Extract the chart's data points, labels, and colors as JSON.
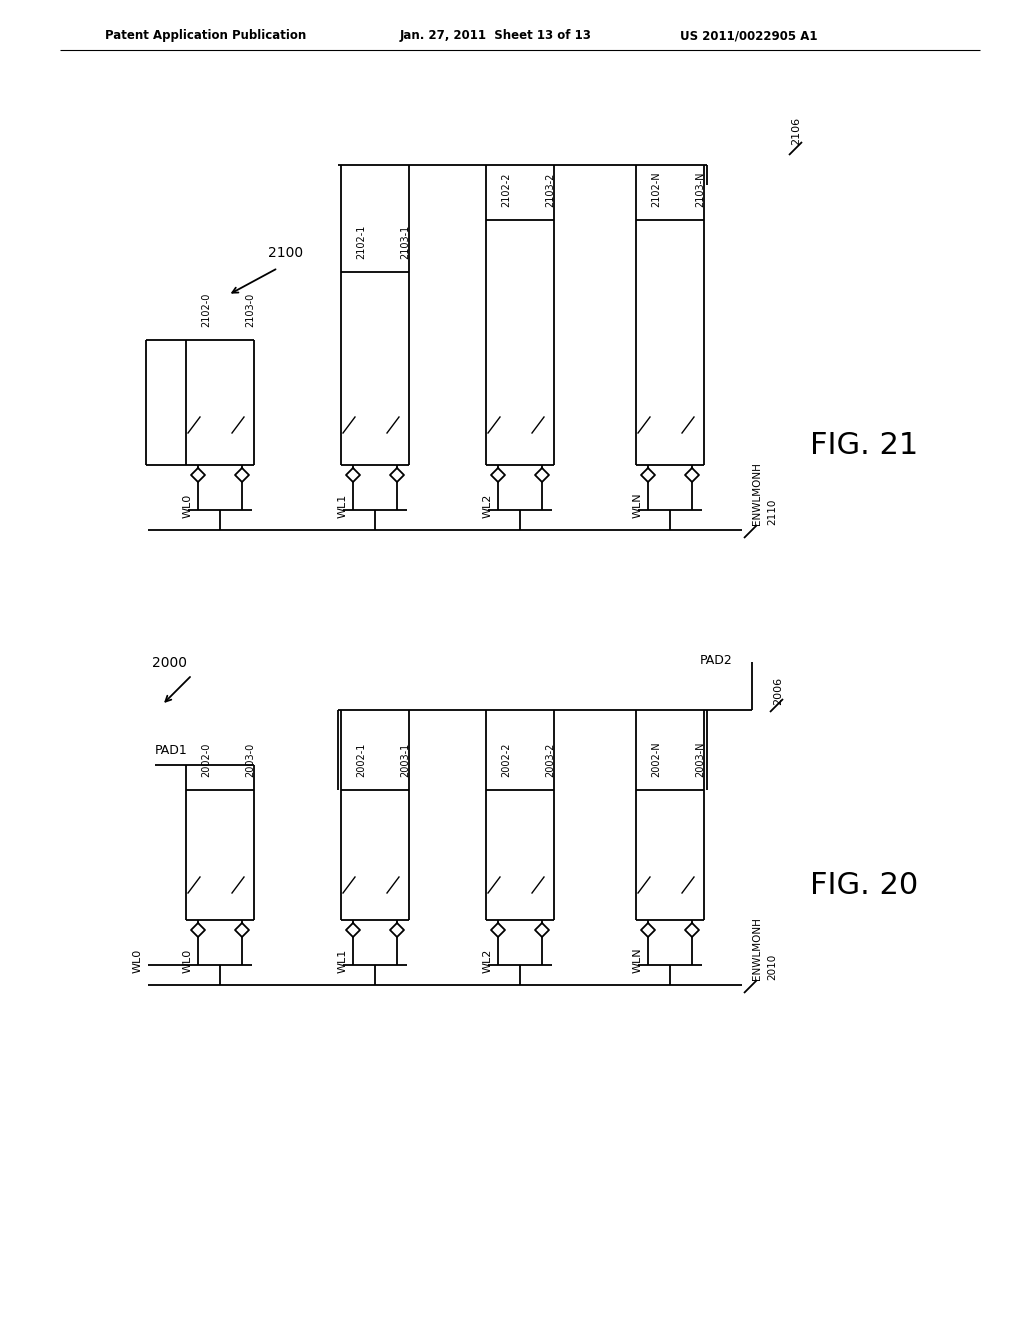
{
  "bg_color": "#ffffff",
  "line_color": "#000000",
  "header_left": "Patent Application Publication",
  "header_mid": "Jan. 27, 2011  Sheet 13 of 13",
  "header_right": "US 2011/0022905 A1",
  "fig20": {
    "label": "2000",
    "fig_label": "FIG. 20",
    "pad1_label": "PAD1",
    "pad2_label": "PAD2",
    "bus_label": "2006",
    "enwl_label": "ENWLMONH",
    "enwl_num": "2010",
    "columns": [
      {
        "wl": "WL0",
        "t1": "2002-0",
        "t2": "2003-0"
      },
      {
        "wl": "WL1",
        "t1": "2002-1",
        "t2": "2003-1"
      },
      {
        "wl": "WL2",
        "t1": "2002-2",
        "t2": "2003-2"
      },
      {
        "wl": "WLN",
        "t1": "2002-N",
        "t2": "2003-N"
      }
    ]
  },
  "fig21": {
    "label": "2100",
    "fig_label": "FIG. 21",
    "bus_label": "2106",
    "enwl_label": "ENWLMONH",
    "enwl_num": "2110",
    "columns": [
      {
        "wl": "WL0",
        "t1": "2102-0",
        "t2": "2103-0"
      },
      {
        "wl": "WL1",
        "t1": "2102-1",
        "t2": "2103-1"
      },
      {
        "wl": "WL2",
        "t1": "2102-2",
        "t2": "2103-2"
      },
      {
        "wl": "WLN",
        "t1": "2102-N",
        "t2": "2103-N"
      }
    ]
  }
}
